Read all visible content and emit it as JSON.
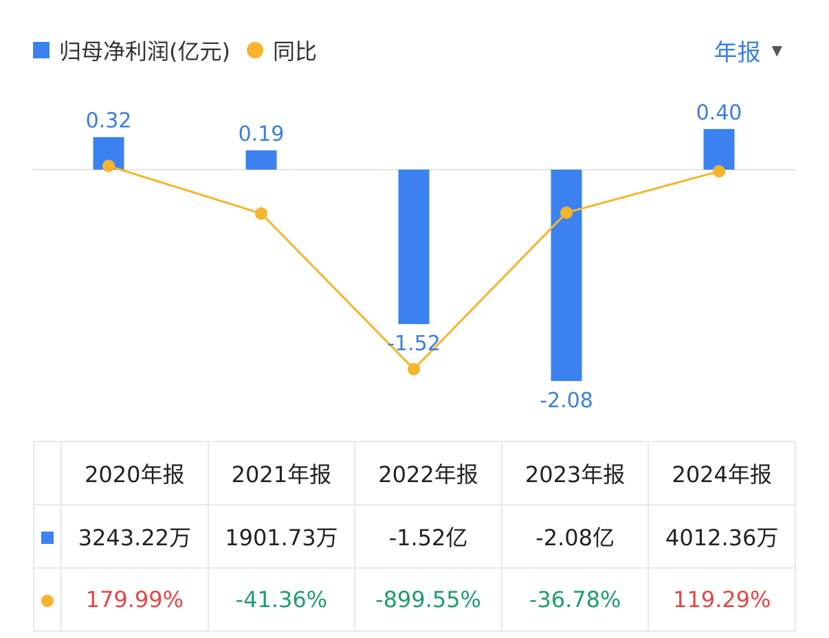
{
  "legend": {
    "bar_label": "归母净利润(亿元)",
    "line_label": "同比"
  },
  "period_selector": {
    "label": "年报",
    "caret": "▼"
  },
  "colors": {
    "bar": "#3b82f0",
    "line": "#f7b32b",
    "bar_label": "#3b7fe0",
    "positive": "#e64545",
    "negative": "#1e9e6b"
  },
  "chart_data": {
    "type": "bar",
    "categories": [
      "2020年报",
      "2021年报",
      "2022年报",
      "2023年报",
      "2024年报"
    ],
    "series": [
      {
        "name": "归母净利润(亿元)",
        "type": "bar",
        "values": [
          0.32,
          0.19,
          -1.52,
          -2.08,
          0.4
        ],
        "labels": [
          "0.32",
          "0.19",
          "-1.52",
          "-2.08",
          "0.40"
        ]
      },
      {
        "name": "同比",
        "type": "line",
        "values": [
          179.99,
          -41.36,
          -899.55,
          -36.78,
          119.29
        ]
      }
    ],
    "title": "",
    "xlabel": "",
    "ylabel": "",
    "legend_position": "top-left",
    "grid": false
  },
  "table": {
    "headers": [
      "2020年报",
      "2021年报",
      "2022年报",
      "2023年报",
      "2024年报"
    ],
    "net_profit": [
      "3243.22万",
      "1901.73万",
      "-1.52亿",
      "-2.08亿",
      "4012.36万"
    ],
    "yoy": [
      "179.99%",
      "-41.36%",
      "-899.55%",
      "-36.78%",
      "119.29%"
    ]
  }
}
